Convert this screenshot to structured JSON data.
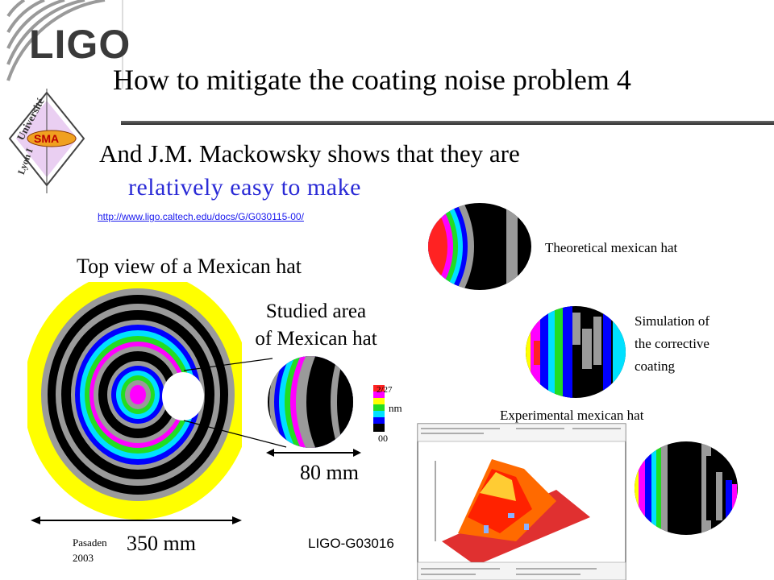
{
  "logo": {
    "text": "LIGO"
  },
  "badge": {
    "univ_text": "Université",
    "lyon_text": "Lyon I",
    "sma_text": "SMA"
  },
  "title": "How to mitigate the coating noise problem 4",
  "subtitle_line1": "And J.M. Mackowsky shows that they are",
  "subtitle_line2": "relatively easy to make",
  "link": "http://www.ligo.caltech.edu/docs/G/G030115-00/",
  "labels": {
    "top_view": "Top view of a Mexican hat",
    "studied_line1": "Studied area",
    "studied_line2": "of Mexican hat",
    "theoretical": "Theoretical mexican hat",
    "simulation_line1": "Simulation of",
    "simulation_line2": "the corrective",
    "simulation_line3": "coating",
    "experimental": "Experimental mexican hat",
    "mm80": "80 mm",
    "mm350": "350 mm"
  },
  "colorbar": {
    "top": "2/27",
    "unit": "nm",
    "bottom": "00"
  },
  "footer": {
    "place_line1": "Pasaden",
    "place_line2": "2003",
    "doc_id": "LIGO-G03016"
  },
  "colors": {
    "yellow": "#ffff00",
    "grey": "#9a9a9a",
    "black": "#000000",
    "magenta": "#ff00ff",
    "blue": "#0000ff",
    "cyan": "#00e0ff",
    "green": "#22dd22",
    "red": "#ff2222",
    "link_blue": "#1a1aee",
    "subtitle_blue": "#2b2bd6"
  }
}
